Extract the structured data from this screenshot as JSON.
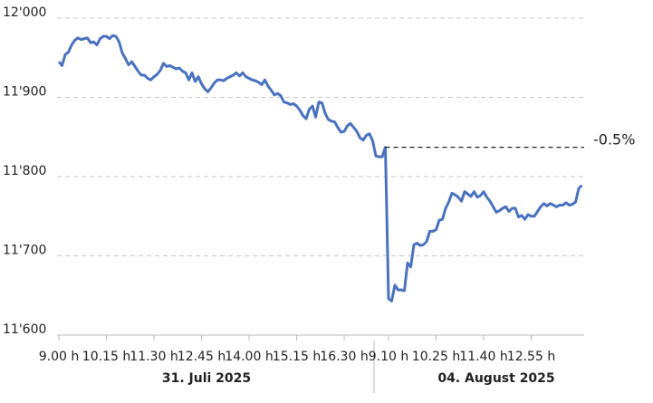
{
  "chart_data": {
    "type": "line",
    "annotation": "-0.5%",
    "day_labels": [
      "31. Juli 2025",
      "04. August 2025"
    ],
    "ylim": [
      11600,
      12000
    ],
    "yticks": [
      {
        "value": 11600,
        "label": "11'600"
      },
      {
        "value": 11700,
        "label": "11'700"
      },
      {
        "value": 11800,
        "label": "11'800"
      },
      {
        "value": 11900,
        "label": "11'900"
      },
      {
        "value": 12000,
        "label": "12'000"
      }
    ],
    "grid": true,
    "categories": [
      "9.00 h",
      null,
      null,
      null,
      null,
      null,
      null,
      null,
      null,
      null,
      null,
      null,
      null,
      null,
      null,
      "10.15 h",
      null,
      null,
      null,
      null,
      null,
      null,
      null,
      null,
      null,
      null,
      null,
      null,
      null,
      null,
      "11.30 h",
      null,
      null,
      null,
      null,
      null,
      null,
      null,
      null,
      null,
      null,
      null,
      null,
      null,
      null,
      "12.45 h",
      null,
      null,
      null,
      null,
      null,
      null,
      null,
      null,
      null,
      null,
      null,
      null,
      null,
      null,
      "14.00 h",
      null,
      null,
      null,
      null,
      null,
      null,
      null,
      null,
      null,
      null,
      null,
      null,
      null,
      null,
      "15.15 h",
      null,
      null,
      null,
      null,
      null,
      null,
      null,
      null,
      null,
      null,
      null,
      null,
      null,
      null,
      "16.30 h",
      null,
      null,
      null,
      null,
      null,
      null,
      null,
      null,
      null,
      null,
      null,
      null,
      null,
      "9.10 h",
      null,
      null,
      null,
      null,
      null,
      null,
      null,
      null,
      null,
      null,
      null,
      null,
      null,
      null,
      "10.25 h",
      null,
      null,
      null,
      null,
      null,
      null,
      null,
      null,
      null,
      null,
      null,
      null,
      null,
      null,
      "11.40 h",
      null,
      null,
      null,
      null,
      null,
      null,
      null,
      null,
      null,
      null,
      null,
      null,
      null,
      null,
      "12.55 h",
      null,
      null,
      null,
      null,
      null,
      null,
      null,
      null,
      null,
      null,
      null,
      null,
      null,
      null,
      null,
      null
    ],
    "series": [
      {
        "color": "#4a72c0",
        "values": [
          11945,
          11940,
          11954,
          11957,
          11966,
          11972,
          11975,
          11973,
          11974,
          11975,
          11969,
          11970,
          11966,
          11974,
          11977,
          11977,
          11974,
          11978,
          11977,
          11970,
          11956,
          11949,
          11941,
          11945,
          11939,
          11933,
          11928,
          11928,
          11924,
          11922,
          11926,
          11929,
          11934,
          11943,
          11939,
          11940,
          11938,
          11936,
          11937,
          11933,
          11931,
          11922,
          11931,
          11920,
          11926,
          11917,
          11911,
          11907,
          11912,
          11918,
          11922,
          11922,
          11921,
          11924,
          11926,
          11928,
          11931,
          11927,
          11931,
          11926,
          11924,
          11922,
          11921,
          11919,
          11916,
          11922,
          11914,
          11909,
          11903,
          11905,
          11902,
          11894,
          11893,
          11891,
          11892,
          11889,
          11884,
          11877,
          11873,
          11885,
          11889,
          11875,
          11894,
          11893,
          11880,
          11872,
          11870,
          11869,
          11862,
          11856,
          11857,
          11864,
          11867,
          11862,
          11857,
          11849,
          11846,
          11852,
          11854,
          11845,
          11826,
          11825,
          11825,
          11837,
          11646,
          11643,
          11663,
          11657,
          11657,
          11656,
          11691,
          11686,
          11714,
          11716,
          11713,
          11714,
          11718,
          11731,
          11731,
          11733,
          11745,
          11746,
          11760,
          11768,
          11779,
          11777,
          11774,
          11769,
          11781,
          11778,
          11775,
          11781,
          11774,
          11776,
          11781,
          11774,
          11769,
          11762,
          11755,
          11757,
          11760,
          11762,
          11756,
          11760,
          11760,
          11749,
          11751,
          11746,
          11752,
          11750,
          11750,
          11756,
          11762,
          11766,
          11763,
          11766,
          11764,
          11762,
          11764,
          11764,
          11767,
          11764,
          11765,
          11768,
          11785,
          11789
        ]
      }
    ]
  }
}
